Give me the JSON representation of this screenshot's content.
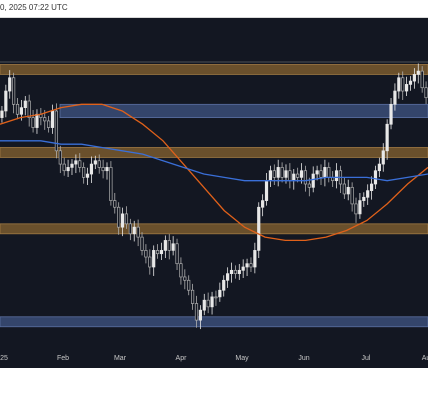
{
  "header": {
    "text": "0, 2025 07:22 UTC"
  },
  "colors": {
    "background": "#131722",
    "supply_zone": "#7a5a2e",
    "demand_zone": "#3b4d78",
    "candle_up": "#e8e8e8",
    "candle_down": "#b0b0b0",
    "ma_fast": "#3a6fd8",
    "ma_slow": "#e0611a"
  },
  "chart_data": {
    "type": "candlestick",
    "title": "",
    "xlabel": "",
    "ylabel": "",
    "x_tick_labels": [
      "25",
      "Feb",
      "Mar",
      "Apr",
      "May",
      "Jun",
      "Jul",
      "Au"
    ],
    "zones": [
      {
        "kind": "supply",
        "y_top": 0.17,
        "y_bottom": 0.14
      },
      {
        "kind": "demand",
        "y_top": 0.3,
        "y_bottom": 0.26
      },
      {
        "kind": "supply",
        "y_top": 0.42,
        "y_bottom": 0.39
      },
      {
        "kind": "supply",
        "y_top": 0.65,
        "y_bottom": 0.62
      },
      {
        "kind": "demand",
        "y_top": 0.93,
        "y_bottom": 0.9
      }
    ],
    "series": [
      {
        "kind": "candles",
        "values": [
          0.28,
          0.22,
          0.18,
          0.26,
          0.29,
          0.27,
          0.25,
          0.3,
          0.33,
          0.29,
          0.3,
          0.31,
          0.33,
          0.28,
          0.4,
          0.44,
          0.46,
          0.45,
          0.44,
          0.43,
          0.45,
          0.48,
          0.47,
          0.44,
          0.43,
          0.45,
          0.46,
          0.45,
          0.55,
          0.57,
          0.63,
          0.59,
          0.62,
          0.65,
          0.63,
          0.66,
          0.7,
          0.72,
          0.75,
          0.7,
          0.71,
          0.7,
          0.67,
          0.7,
          0.68,
          0.74,
          0.78,
          0.79,
          0.82,
          0.86,
          0.91,
          0.88,
          0.85,
          0.87,
          0.84,
          0.84,
          0.82,
          0.79,
          0.77,
          0.76,
          0.77,
          0.76,
          0.75,
          0.74,
          0.75,
          0.7,
          0.57,
          0.55,
          0.49,
          0.46,
          0.48,
          0.45,
          0.48,
          0.46,
          0.49,
          0.47,
          0.48,
          0.46,
          0.5,
          0.51,
          0.47,
          0.46,
          0.48,
          0.45,
          0.48,
          0.49,
          0.46,
          0.5,
          0.53,
          0.51,
          0.56,
          0.59,
          0.55,
          0.54,
          0.52,
          0.5,
          0.46,
          0.44,
          0.4,
          0.32,
          0.26,
          0.22,
          0.18,
          0.22,
          0.2,
          0.19,
          0.17,
          0.16,
          0.21,
          0.24
        ]
      },
      {
        "kind": "ma_slow",
        "values": [
          0.32,
          0.3,
          0.29,
          0.27,
          0.26,
          0.26,
          0.28,
          0.32,
          0.37,
          0.44,
          0.51,
          0.58,
          0.63,
          0.66,
          0.67,
          0.67,
          0.66,
          0.64,
          0.61,
          0.56,
          0.5,
          0.45
        ]
      },
      {
        "kind": "ma_fast",
        "values": [
          0.37,
          0.37,
          0.37,
          0.38,
          0.38,
          0.39,
          0.4,
          0.41,
          0.43,
          0.45,
          0.47,
          0.48,
          0.49,
          0.49,
          0.49,
          0.49,
          0.48,
          0.48,
          0.48,
          0.49,
          0.48,
          0.47
        ]
      }
    ]
  }
}
